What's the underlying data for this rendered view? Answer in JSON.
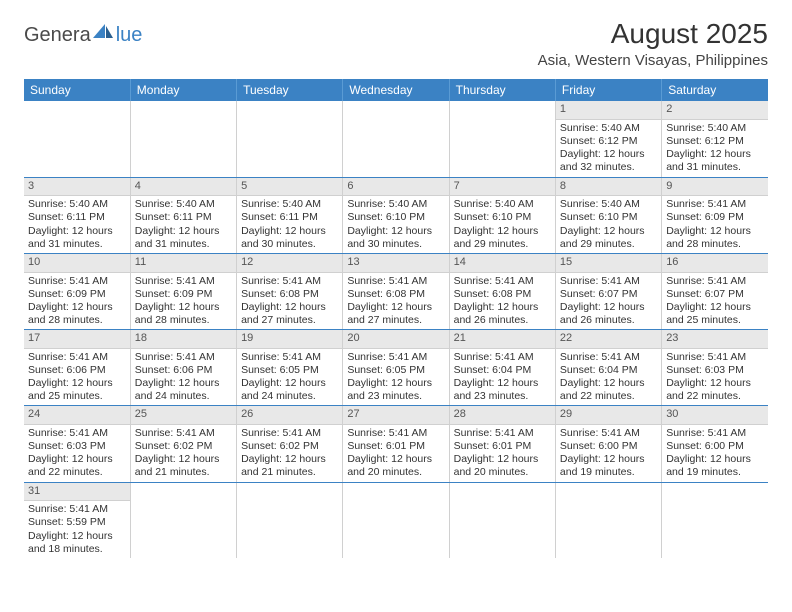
{
  "logo": {
    "text1": "Genera",
    "text2": "lue"
  },
  "title": "August 2025",
  "subtitle": "Asia, Western Visayas, Philippines",
  "dayHeaders": [
    "Sunday",
    "Monday",
    "Tuesday",
    "Wednesday",
    "Thursday",
    "Friday",
    "Saturday"
  ],
  "weeks": [
    [
      null,
      null,
      null,
      null,
      null,
      {
        "n": "1",
        "sr": "5:40 AM",
        "ss": "6:12 PM",
        "dl": "12 hours and 32 minutes."
      },
      {
        "n": "2",
        "sr": "5:40 AM",
        "ss": "6:12 PM",
        "dl": "12 hours and 31 minutes."
      }
    ],
    [
      {
        "n": "3",
        "sr": "5:40 AM",
        "ss": "6:11 PM",
        "dl": "12 hours and 31 minutes."
      },
      {
        "n": "4",
        "sr": "5:40 AM",
        "ss": "6:11 PM",
        "dl": "12 hours and 31 minutes."
      },
      {
        "n": "5",
        "sr": "5:40 AM",
        "ss": "6:11 PM",
        "dl": "12 hours and 30 minutes."
      },
      {
        "n": "6",
        "sr": "5:40 AM",
        "ss": "6:10 PM",
        "dl": "12 hours and 30 minutes."
      },
      {
        "n": "7",
        "sr": "5:40 AM",
        "ss": "6:10 PM",
        "dl": "12 hours and 29 minutes."
      },
      {
        "n": "8",
        "sr": "5:40 AM",
        "ss": "6:10 PM",
        "dl": "12 hours and 29 minutes."
      },
      {
        "n": "9",
        "sr": "5:41 AM",
        "ss": "6:09 PM",
        "dl": "12 hours and 28 minutes."
      }
    ],
    [
      {
        "n": "10",
        "sr": "5:41 AM",
        "ss": "6:09 PM",
        "dl": "12 hours and 28 minutes."
      },
      {
        "n": "11",
        "sr": "5:41 AM",
        "ss": "6:09 PM",
        "dl": "12 hours and 28 minutes."
      },
      {
        "n": "12",
        "sr": "5:41 AM",
        "ss": "6:08 PM",
        "dl": "12 hours and 27 minutes."
      },
      {
        "n": "13",
        "sr": "5:41 AM",
        "ss": "6:08 PM",
        "dl": "12 hours and 27 minutes."
      },
      {
        "n": "14",
        "sr": "5:41 AM",
        "ss": "6:08 PM",
        "dl": "12 hours and 26 minutes."
      },
      {
        "n": "15",
        "sr": "5:41 AM",
        "ss": "6:07 PM",
        "dl": "12 hours and 26 minutes."
      },
      {
        "n": "16",
        "sr": "5:41 AM",
        "ss": "6:07 PM",
        "dl": "12 hours and 25 minutes."
      }
    ],
    [
      {
        "n": "17",
        "sr": "5:41 AM",
        "ss": "6:06 PM",
        "dl": "12 hours and 25 minutes."
      },
      {
        "n": "18",
        "sr": "5:41 AM",
        "ss": "6:06 PM",
        "dl": "12 hours and 24 minutes."
      },
      {
        "n": "19",
        "sr": "5:41 AM",
        "ss": "6:05 PM",
        "dl": "12 hours and 24 minutes."
      },
      {
        "n": "20",
        "sr": "5:41 AM",
        "ss": "6:05 PM",
        "dl": "12 hours and 23 minutes."
      },
      {
        "n": "21",
        "sr": "5:41 AM",
        "ss": "6:04 PM",
        "dl": "12 hours and 23 minutes."
      },
      {
        "n": "22",
        "sr": "5:41 AM",
        "ss": "6:04 PM",
        "dl": "12 hours and 22 minutes."
      },
      {
        "n": "23",
        "sr": "5:41 AM",
        "ss": "6:03 PM",
        "dl": "12 hours and 22 minutes."
      }
    ],
    [
      {
        "n": "24",
        "sr": "5:41 AM",
        "ss": "6:03 PM",
        "dl": "12 hours and 22 minutes."
      },
      {
        "n": "25",
        "sr": "5:41 AM",
        "ss": "6:02 PM",
        "dl": "12 hours and 21 minutes."
      },
      {
        "n": "26",
        "sr": "5:41 AM",
        "ss": "6:02 PM",
        "dl": "12 hours and 21 minutes."
      },
      {
        "n": "27",
        "sr": "5:41 AM",
        "ss": "6:01 PM",
        "dl": "12 hours and 20 minutes."
      },
      {
        "n": "28",
        "sr": "5:41 AM",
        "ss": "6:01 PM",
        "dl": "12 hours and 20 minutes."
      },
      {
        "n": "29",
        "sr": "5:41 AM",
        "ss": "6:00 PM",
        "dl": "12 hours and 19 minutes."
      },
      {
        "n": "30",
        "sr": "5:41 AM",
        "ss": "6:00 PM",
        "dl": "12 hours and 19 minutes."
      }
    ],
    [
      {
        "n": "31",
        "sr": "5:41 AM",
        "ss": "5:59 PM",
        "dl": "12 hours and 18 minutes."
      },
      null,
      null,
      null,
      null,
      null,
      null
    ]
  ],
  "labels": {
    "sunrise": "Sunrise: ",
    "sunset": "Sunset: ",
    "daylight": "Daylight: "
  }
}
